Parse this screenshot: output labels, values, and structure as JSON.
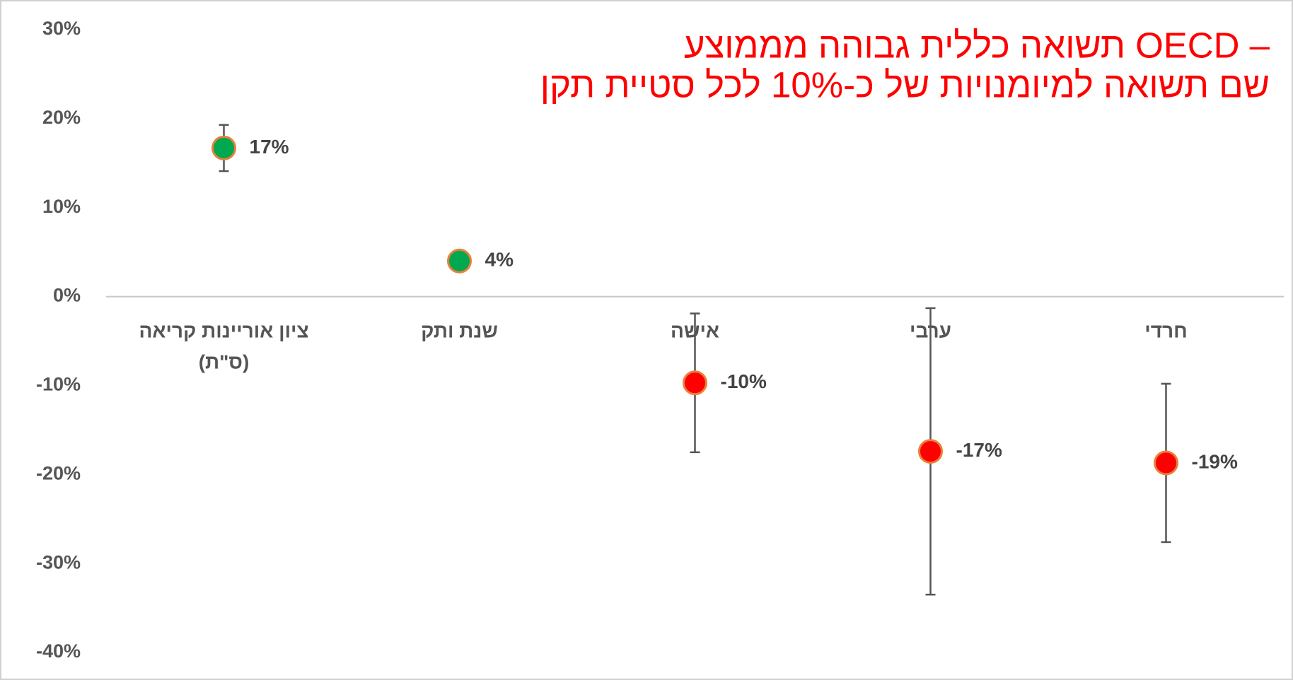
{
  "chart_data": {
    "type": "errorbar",
    "title": [
      "תשואה כללית גבוהה מממוצע OECD –",
      "שם תשואה למיומנויות של כ-10% לכל סטיית תקן"
    ],
    "categories": [
      [
        "ציון אוריינות קריאה",
        "(ס\"ת)"
      ],
      [
        "שנת ותק"
      ],
      [
        "אישה"
      ],
      [
        "ערבי"
      ],
      [
        "חרדי"
      ]
    ],
    "values": [
      16.7,
      4,
      -9.7,
      -17.4,
      -18.7
    ],
    "value_labels": [
      "17%",
      "4%",
      "-10%",
      "-17%",
      "-19%"
    ],
    "errors": [
      2.6,
      null,
      7.8,
      16.1,
      8.9
    ],
    "colors": [
      "#00a84f",
      "#00a84f",
      "#ff0000",
      "#ff0000",
      "#ff0000"
    ],
    "marker_edge_color": "#e8803a",
    "ylim": [
      -40,
      30
    ],
    "yticks": [
      {
        "value": -40,
        "label": "-40%"
      },
      {
        "value": -30,
        "label": "-30%"
      },
      {
        "value": -20,
        "label": "-20%"
      },
      {
        "value": -10,
        "label": "-10%"
      },
      {
        "value": 0,
        "label": "0%"
      },
      {
        "value": 10,
        "label": "10%"
      },
      {
        "value": 20,
        "label": "20%"
      },
      {
        "value": 30,
        "label": "30%"
      }
    ],
    "grid": false
  }
}
